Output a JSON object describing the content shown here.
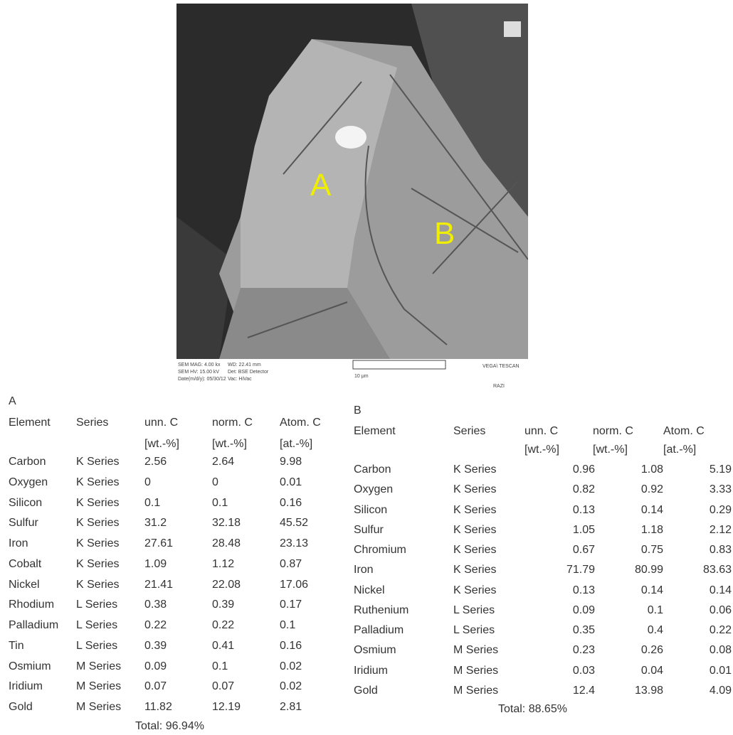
{
  "figure": {
    "image_labels": {
      "a": "A",
      "b": "B"
    },
    "sem_info": [
      "SEM MAG: 4.00 kx",
      "WD: 22.41 mm",
      "SEM HV: 15.00 kV",
      "Det: BSE Detector",
      "Date(m/d/y): 05/30/12",
      "Vac: HiVac",
      "10 μm",
      "VEGA\\ TESCAN",
      "RAZI"
    ]
  },
  "tables": [
    {
      "label": "A",
      "columns": [
        "Element",
        "Series",
        "unn. C",
        "norm. C",
        "Atom. C"
      ],
      "units": [
        "[wt.-%]",
        "[wt.-%]",
        "[at.-%]"
      ],
      "rows": [
        [
          "Carbon",
          "K Series",
          "2.56",
          "2.64",
          "9.98"
        ],
        [
          "Oxygen",
          "K Series",
          "0",
          "0",
          "0.01"
        ],
        [
          "Silicon",
          "K Series",
          "0.1",
          "0.1",
          "0.16"
        ],
        [
          "Sulfur",
          "K Series",
          "31.2",
          "32.18",
          "45.52"
        ],
        [
          "Iron",
          "K Series",
          "27.61",
          "28.48",
          "23.13"
        ],
        [
          "Cobalt",
          "K Series",
          "1.09",
          "1.12",
          "0.87"
        ],
        [
          "Nickel",
          "K Series",
          "21.41",
          "22.08",
          "17.06"
        ],
        [
          "Rhodium",
          "L Series",
          "0.38",
          "0.39",
          "0.17"
        ],
        [
          "Palladium",
          "L Series",
          "0.22",
          "0.22",
          "0.1"
        ],
        [
          "Tin",
          "L Series",
          "0.39",
          "0.41",
          "0.16"
        ],
        [
          "Osmium",
          "M Series",
          "0.09",
          "0.1",
          "0.02"
        ],
        [
          "Iridium",
          "M Series",
          "0.07",
          "0.07",
          "0.02"
        ],
        [
          "Gold",
          "M Series",
          "11.82",
          "12.19",
          "2.81"
        ]
      ],
      "total": "Total: 96.94%"
    },
    {
      "label": "B",
      "columns": [
        "Element",
        "Series",
        "unn. C",
        "norm. C",
        "Atom. C"
      ],
      "units": [
        "[wt.-%]",
        "[wt.-%]",
        "[at.-%]"
      ],
      "rows": [
        [
          "Carbon",
          "K Series",
          "0.96",
          "1.08",
          "5.19"
        ],
        [
          "Oxygen",
          "K Series",
          "0.82",
          "0.92",
          "3.33"
        ],
        [
          "Silicon",
          "K Series",
          "0.13",
          "0.14",
          "0.29"
        ],
        [
          "Sulfur",
          "K Series",
          "1.05",
          "1.18",
          "2.12"
        ],
        [
          "Chromium",
          "K Series",
          "0.67",
          "0.75",
          "0.83"
        ],
        [
          "Iron",
          "K Series",
          "71.79",
          "80.99",
          "83.63"
        ],
        [
          "Nickel",
          "K Series",
          "0.13",
          "0.14",
          "0.14"
        ],
        [
          "Ruthenium",
          "L Series",
          "0.09",
          "0.1",
          "0.06"
        ],
        [
          "Palladium",
          "L Series",
          "0.35",
          "0.4",
          "0.22"
        ],
        [
          "Osmium",
          "M Series",
          "0.23",
          "0.26",
          "0.08"
        ],
        [
          "Iridium",
          "M Series",
          "0.03",
          "0.04",
          "0.01"
        ],
        [
          "Gold",
          "M Series",
          "12.4",
          "13.98",
          "4.09"
        ]
      ],
      "total": "Total: 88.65%"
    }
  ]
}
